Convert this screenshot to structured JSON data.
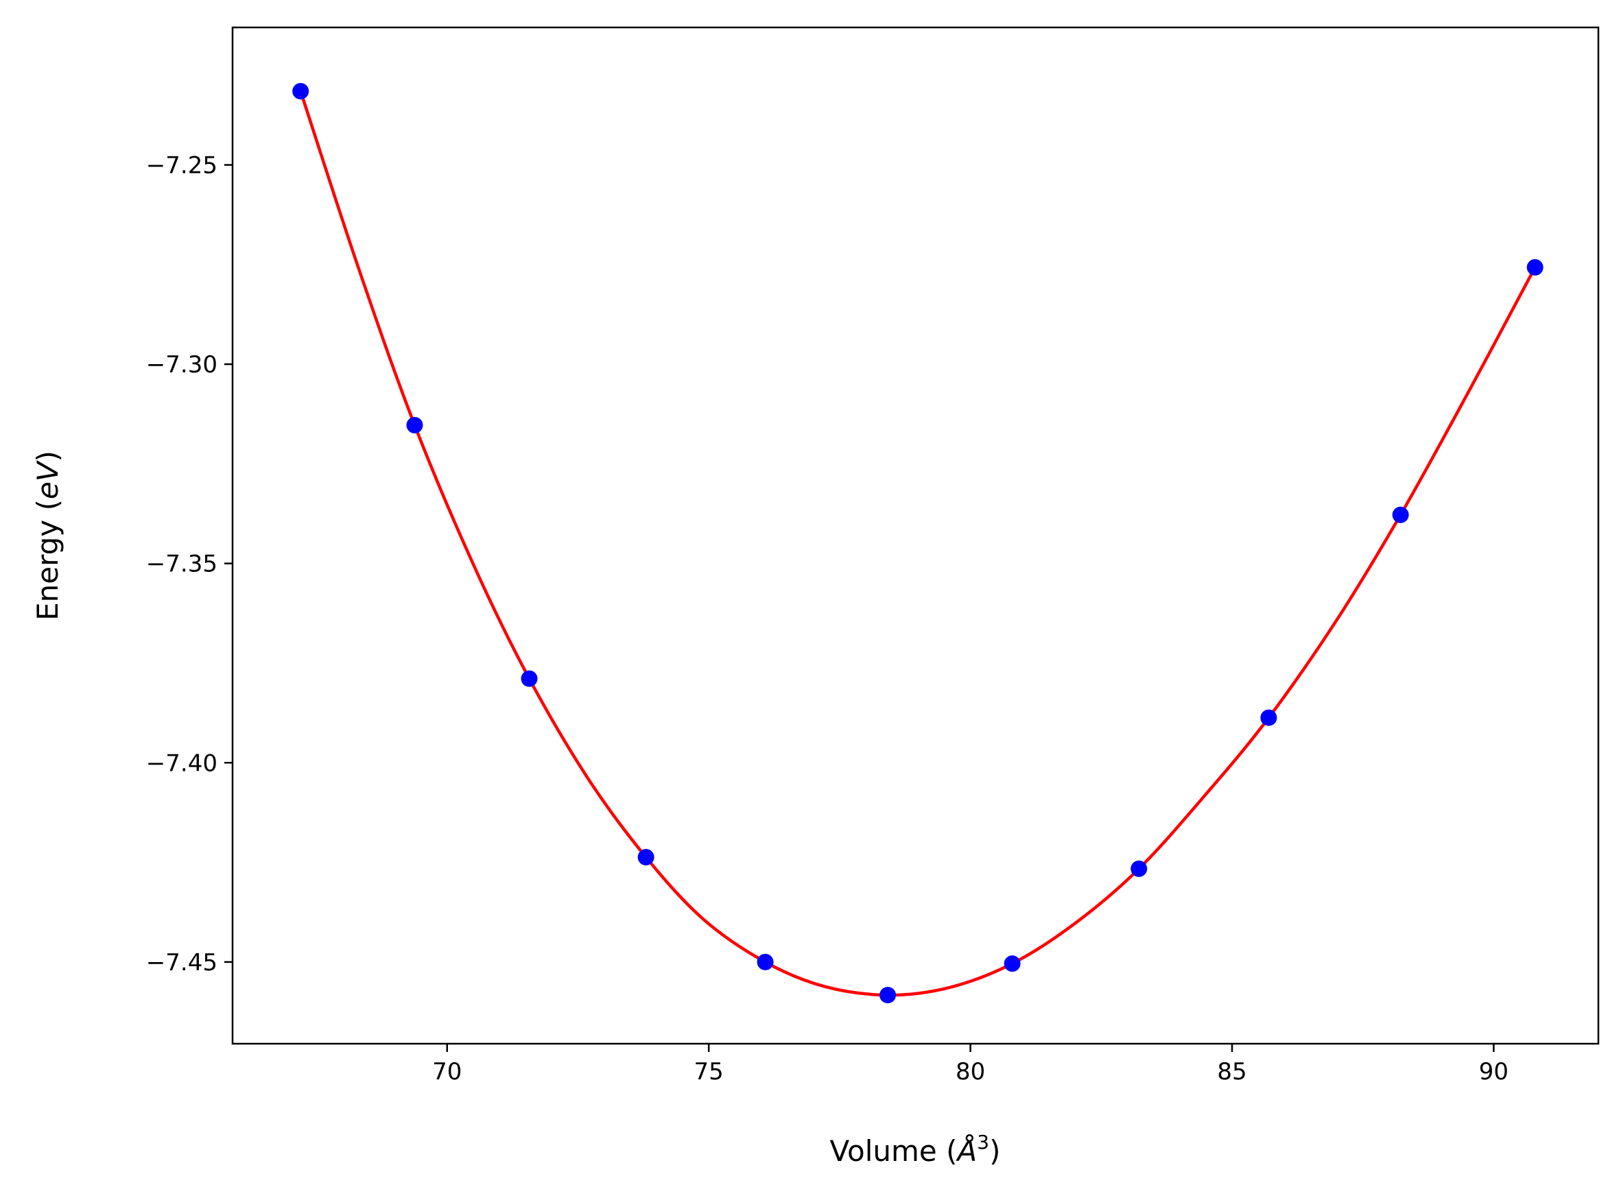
{
  "chart_data": {
    "type": "scatter",
    "xlabel": "Volume (Å³)",
    "ylabel": "Energy (eV)",
    "xlabel_parts": {
      "prefix": "Volume (",
      "symbol": "Å",
      "sup": "3",
      "suffix": ")"
    },
    "ylabel_parts": {
      "prefix": "Energy (",
      "symbol": "eV",
      "suffix": ")"
    },
    "xlim": [
      65.9,
      92.0
    ],
    "ylim": [
      -7.4705,
      -7.2155
    ],
    "x_ticks": [
      70,
      75,
      80,
      85,
      90
    ],
    "x_tick_labels": [
      "70",
      "75",
      "80",
      "85",
      "90"
    ],
    "y_ticks": [
      -7.25,
      -7.3,
      -7.35,
      -7.4,
      -7.45
    ],
    "y_tick_labels": [
      "−7.25",
      "−7.30",
      "−7.35",
      "−7.40",
      "−7.45"
    ],
    "grid": false,
    "series": [
      {
        "kind": "markers",
        "color": "#0000ff",
        "x": [
          67.2,
          69.38,
          71.57,
          73.8,
          76.08,
          78.42,
          80.8,
          83.22,
          85.7,
          88.22,
          90.79
        ],
        "y": [
          -7.2315,
          -7.3153,
          -7.3789,
          -7.4237,
          -7.45,
          -7.4583,
          -7.4504,
          -7.4266,
          -7.3887,
          -7.3378,
          -7.2757
        ]
      },
      {
        "kind": "fit-line",
        "color": "#ff0000",
        "x": [
          67.2,
          68.3,
          69.38,
          70.5,
          71.57,
          72.7,
          73.8,
          74.9,
          76.08,
          77.2,
          78.42,
          79.6,
          80.8,
          82.0,
          83.22,
          84.5,
          85.7,
          87.0,
          88.22,
          89.5,
          90.79
        ],
        "y": [
          -7.2315,
          -7.2756,
          -7.3153,
          -7.3502,
          -7.3789,
          -7.4041,
          -7.4237,
          -7.4393,
          -7.45,
          -7.4561,
          -7.4583,
          -7.4564,
          -7.4504,
          -7.4403,
          -7.4266,
          -7.4079,
          -7.3887,
          -7.3642,
          -7.3378,
          -7.3074,
          -7.2757
        ]
      }
    ]
  }
}
